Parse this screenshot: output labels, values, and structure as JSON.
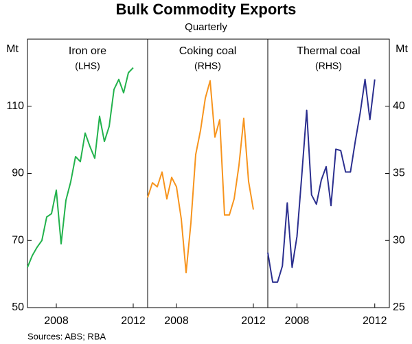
{
  "chart_data": {
    "type": "line",
    "title": "Bulk Commodity Exports",
    "subtitle": "Quarterly",
    "ylabel": "Mt",
    "y2label": "Mt",
    "ylim": [
      50,
      130
    ],
    "yticks": [
      50,
      70,
      90,
      110
    ],
    "y2lim": [
      25,
      45
    ],
    "y2ticks": [
      25,
      30,
      35,
      40
    ],
    "xlim": [
      2006.5,
      2012.75
    ],
    "xticks": [
      2008,
      2012
    ],
    "x": [
      2006.5,
      2006.75,
      2007,
      2007.25,
      2007.5,
      2007.75,
      2008,
      2008.25,
      2008.5,
      2008.75,
      2009,
      2009.25,
      2009.5,
      2009.75,
      2010,
      2010.25,
      2010.5,
      2010.75,
      2011,
      2011.25,
      2011.5,
      2011.75,
      2012
    ],
    "series": [
      {
        "name": "Iron ore",
        "note": "(LHS)",
        "color": "#22b24c",
        "axis": "y",
        "values": [
          62,
          65.5,
          68,
          70,
          77,
          78,
          85,
          69,
          82,
          87.5,
          95,
          93.5,
          102,
          98,
          94.5,
          107,
          99.5,
          104,
          115,
          118,
          114,
          120,
          121.5
        ]
      },
      {
        "name": "Coking coal",
        "note": "(RHS)",
        "color": "#f7941d",
        "axis": "y2",
        "values": [
          33.2,
          34.3,
          34,
          35.1,
          33.1,
          34.7,
          34,
          31.6,
          27.6,
          31.3,
          36.4,
          38.2,
          40.6,
          41.9,
          37.7,
          39,
          31.9,
          31.9,
          33.1,
          35.6,
          39.1,
          34.4,
          32.3
        ]
      },
      {
        "name": "Thermal coal",
        "note": "(RHS)",
        "color": "#2b2f8f",
        "axis": "y2",
        "values": [
          29.1,
          26.9,
          26.9,
          28.1,
          32.8,
          28,
          30.3,
          34.9,
          39.7,
          33.4,
          32.7,
          34.5,
          35.5,
          32.6,
          36.8,
          36.7,
          35.1,
          35.1,
          37.4,
          39.5,
          42,
          39,
          42
        ]
      }
    ],
    "source": "Sources: ABS; RBA"
  }
}
